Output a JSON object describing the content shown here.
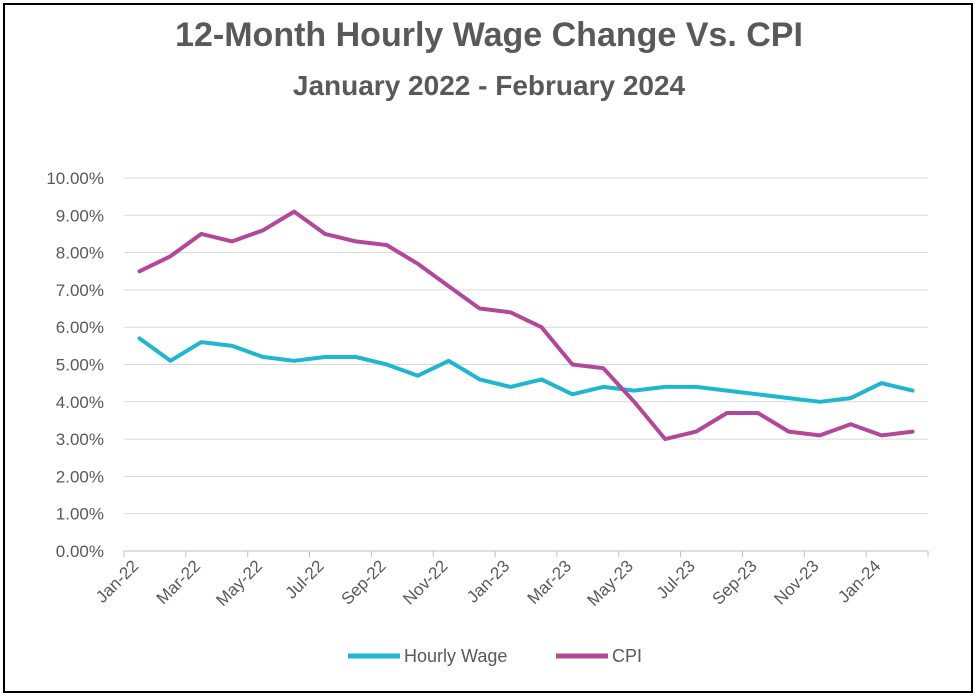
{
  "chart_data": {
    "type": "line",
    "title": "12-Month Hourly Wage Change Vs. CPI",
    "subtitle": "January 2022 - February 2024",
    "ylim": [
      0,
      10
    ],
    "y_ticks": [
      "0.00%",
      "1.00%",
      "2.00%",
      "3.00%",
      "4.00%",
      "5.00%",
      "6.00%",
      "7.00%",
      "8.00%",
      "9.00%",
      "10.00%"
    ],
    "x_tick_labels": [
      "Jan-22",
      "Mar-22",
      "May-22",
      "Jul-22",
      "Sep-22",
      "Nov-22",
      "Jan-23",
      "Mar-23",
      "May-23",
      "Jul-23",
      "Sep-23",
      "Nov-23",
      "Jan-24"
    ],
    "x": [
      "Jan-22",
      "Feb-22",
      "Mar-22",
      "Apr-22",
      "May-22",
      "Jun-22",
      "Jul-22",
      "Aug-22",
      "Sep-22",
      "Oct-22",
      "Nov-22",
      "Dec-22",
      "Jan-23",
      "Feb-23",
      "Mar-23",
      "Apr-23",
      "May-23",
      "Jun-23",
      "Jul-23",
      "Aug-23",
      "Sep-23",
      "Oct-23",
      "Nov-23",
      "Dec-23",
      "Jan-24",
      "Feb-24"
    ],
    "legend_position": "bottom",
    "grid": true,
    "series": [
      {
        "name": "Hourly Wage",
        "color": "#1fb6cf",
        "values": [
          5.7,
          5.1,
          5.6,
          5.5,
          5.2,
          5.1,
          5.2,
          5.2,
          5.0,
          4.7,
          5.1,
          4.6,
          4.4,
          4.6,
          4.2,
          4.4,
          4.3,
          4.4,
          4.4,
          4.3,
          4.2,
          4.1,
          4.0,
          4.1,
          4.5,
          4.3
        ]
      },
      {
        "name": "CPI",
        "color": "#b1489a",
        "values": [
          7.5,
          7.9,
          8.5,
          8.3,
          8.6,
          9.1,
          8.5,
          8.3,
          8.2,
          7.7,
          7.1,
          6.5,
          6.4,
          6.0,
          5.0,
          4.9,
          4.0,
          3.0,
          3.2,
          3.7,
          3.7,
          3.2,
          3.1,
          3.4,
          3.1,
          3.2
        ]
      }
    ]
  }
}
